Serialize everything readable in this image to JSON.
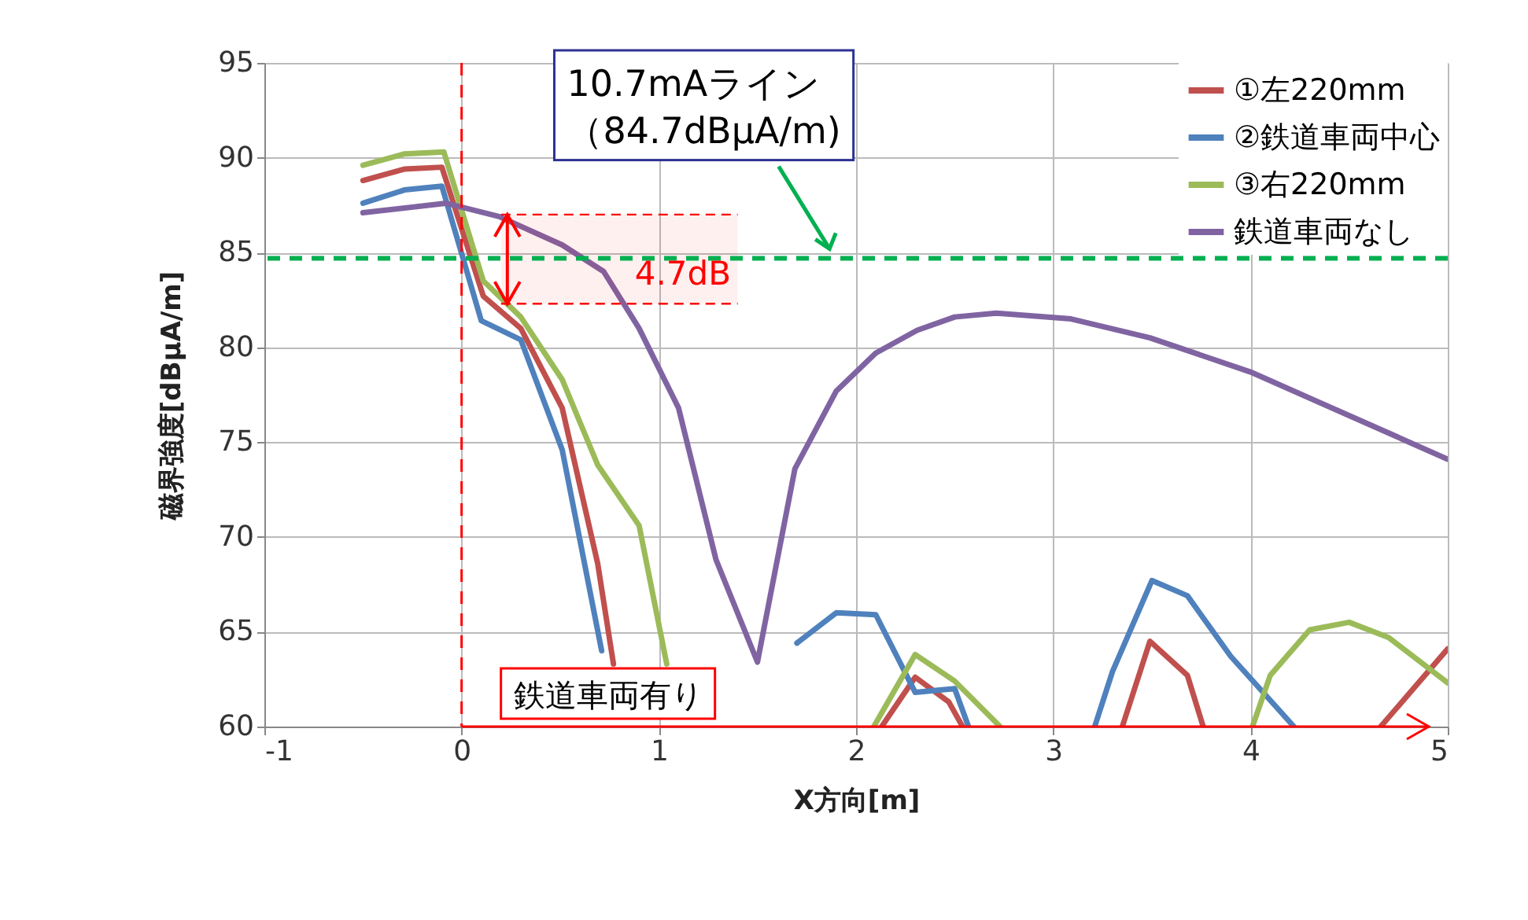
{
  "chart_data": {
    "type": "line",
    "xlabel": "X方向[m]",
    "ylabel": "磁界強度[dBμA/m]",
    "xlim": [
      -1,
      5
    ],
    "ylim": [
      60,
      95
    ],
    "xticks": [
      -1,
      0,
      1,
      2,
      3,
      4,
      5
    ],
    "yticks": [
      60,
      65,
      70,
      75,
      80,
      85,
      90,
      95
    ],
    "grid": true,
    "legend": "top right",
    "line_style": "solid",
    "series": [
      {
        "name": "①左220mm",
        "color": "#c0504d",
        "x": [
          -0.5,
          -0.29,
          -0.1,
          0.11,
          0.3,
          0.51,
          0.69,
          0.77,
          null,
          2.13,
          2.3,
          2.47,
          2.54,
          null,
          3.35,
          3.49,
          3.68,
          3.76,
          null,
          4.66,
          5
        ],
        "values": [
          88.8,
          89.4,
          89.5,
          82.7,
          81.0,
          76.8,
          68.6,
          63.3,
          null,
          60,
          62.6,
          61.3,
          60,
          null,
          60,
          64.5,
          62.7,
          60,
          null,
          60,
          64.1
        ]
      },
      {
        "name": "②鉄道車両中心",
        "color": "#4f81bd",
        "x": [
          -0.5,
          -0.29,
          -0.1,
          0.1,
          0.3,
          0.51,
          0.71,
          null,
          1.7,
          1.9,
          2.1,
          2.3,
          2.5,
          2.57,
          null,
          3.21,
          3.3,
          3.5,
          3.68,
          3.9,
          4.22
        ],
        "values": [
          87.6,
          88.3,
          88.5,
          81.4,
          80.4,
          74.6,
          64.0,
          null,
          64.4,
          66.0,
          65.9,
          61.8,
          62.0,
          60,
          null,
          60,
          62.9,
          67.7,
          66.9,
          63.7,
          60
        ]
      },
      {
        "name": "③右220mm",
        "color": "#9bbb59",
        "x": [
          -0.5,
          -0.29,
          -0.09,
          0.11,
          0.3,
          0.51,
          0.69,
          0.9,
          1.04,
          null,
          2.09,
          2.3,
          2.5,
          2.73,
          null,
          4.01,
          4.1,
          4.3,
          4.5,
          4.7,
          5
        ],
        "values": [
          89.6,
          90.2,
          90.3,
          83.5,
          81.6,
          78.3,
          73.8,
          70.6,
          63.3,
          null,
          60,
          63.8,
          62.4,
          60,
          null,
          60,
          62.7,
          65.1,
          65.5,
          64.7,
          62.3
        ]
      },
      {
        "name": "鉄道車両なし",
        "color": "#8064a2",
        "x": [
          -0.5,
          -0.08,
          0.19,
          0.51,
          0.72,
          0.9,
          1.1,
          1.29,
          1.5,
          1.69,
          1.9,
          2.1,
          2.31,
          2.5,
          2.71,
          3.09,
          3.49,
          4.0,
          4.5,
          5
        ],
        "values": [
          87.1,
          87.6,
          86.9,
          85.4,
          84.0,
          81.0,
          76.8,
          68.8,
          63.4,
          73.6,
          77.7,
          79.7,
          80.9,
          81.6,
          81.8,
          81.5,
          80.5,
          78.7,
          76.4,
          74.1
        ]
      }
    ],
    "ref_lines": [
      {
        "axis": "y",
        "value": 84.7,
        "label": "10.7mAライン（84.7dBμA/m)",
        "color": "#00b050",
        "line_style": "dashed"
      },
      {
        "axis": "x",
        "value": 0,
        "color": "#ff0000",
        "line_style": "dashed"
      }
    ],
    "bands": [
      {
        "axis": "y",
        "from": 82.3,
        "to": 87.0,
        "label": "4.7dB",
        "color": "#ff0000"
      }
    ],
    "annotations": [
      "鉄道車両有り"
    ]
  }
}
